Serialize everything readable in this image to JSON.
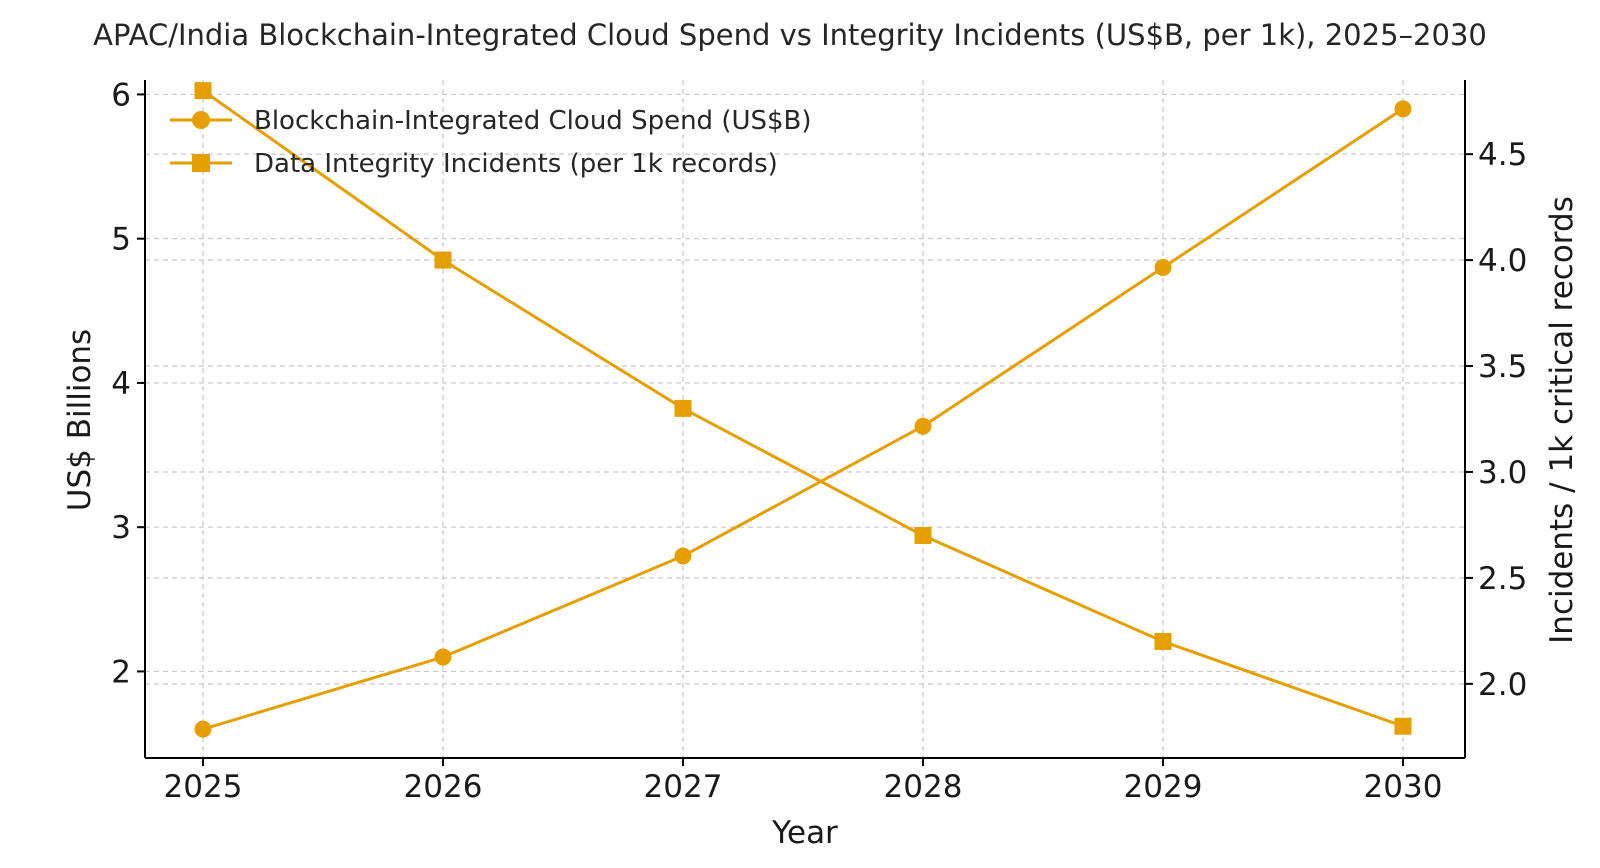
{
  "chart_data": {
    "type": "line",
    "title": "APAC/India Blockchain-Integrated Cloud Spend vs Integrity Incidents (US$B, per 1k), 2025–2030",
    "xlabel": "Year",
    "ylabel": "US$ Billions",
    "ylabel_right": "Incidents / 1k critical records",
    "x": [
      2025,
      2026,
      2027,
      2028,
      2029,
      2030
    ],
    "x_tick_labels": [
      "2025",
      "2026",
      "2027",
      "2028",
      "2029",
      "2030"
    ],
    "ylim": [
      1.4,
      6.1
    ],
    "y_ticks": [
      2,
      3,
      4,
      5,
      6
    ],
    "y_tick_labels": [
      "2",
      "3",
      "4",
      "5",
      "6"
    ],
    "ylim_right": [
      1.65,
      4.85
    ],
    "y_ticks_right": [
      2.0,
      2.5,
      3.0,
      3.5,
      4.0,
      4.5
    ],
    "y_tick_labels_right": [
      "2.0",
      "2.5",
      "3.0",
      "3.5",
      "4.0",
      "4.5"
    ],
    "grid": true,
    "legend_position": "upper-left",
    "series": [
      {
        "name": "Blockchain-Integrated Cloud Spend (US$B)",
        "axis": "left",
        "marker": "circle",
        "color": "#E69F00",
        "values": [
          1.6,
          2.1,
          2.8,
          3.7,
          4.8,
          5.9
        ]
      },
      {
        "name": "Data Integrity Incidents (per 1k records)",
        "axis": "right",
        "marker": "square",
        "color": "#E69F00",
        "values": [
          4.8,
          4.0,
          3.3,
          2.7,
          2.2,
          1.8
        ]
      }
    ]
  }
}
